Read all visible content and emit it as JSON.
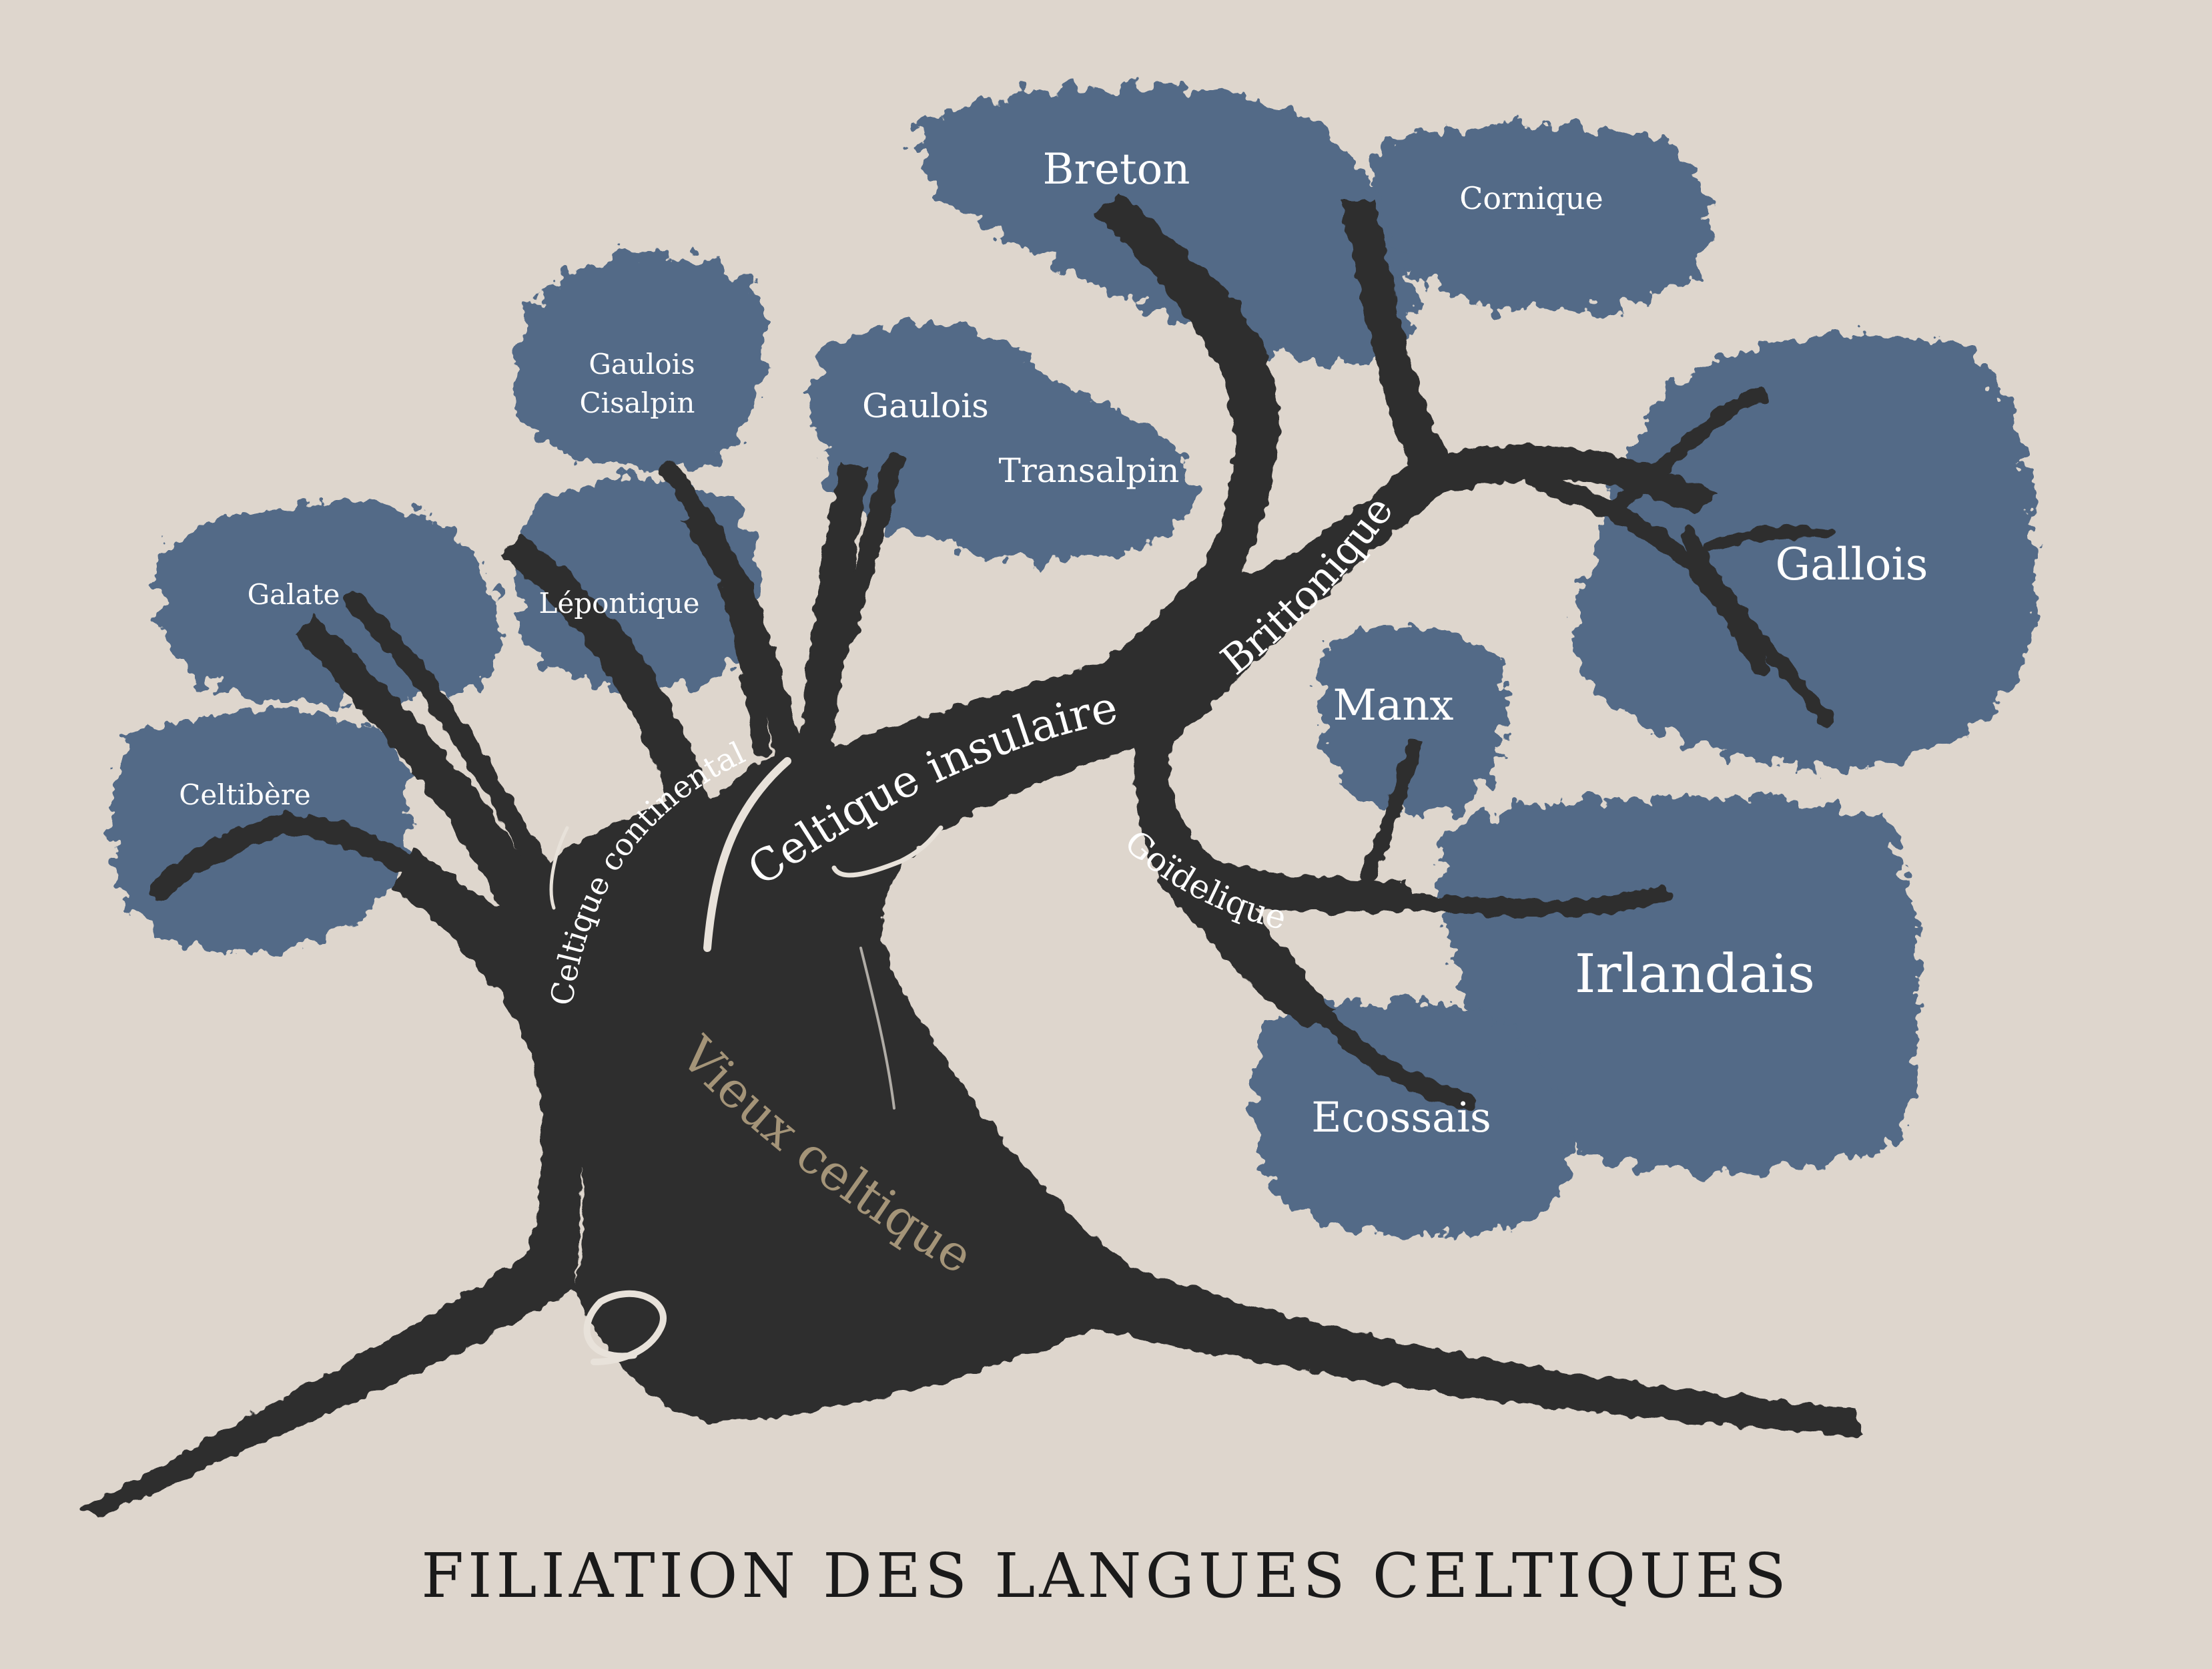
{
  "title": "FILIATION DES LANGUES CELTIQUES",
  "colors": {
    "background": "#ded6cd",
    "foliage": "#526a87",
    "trunk": "#2e2e2f",
    "leaf_text": "#ffffff",
    "root_text": "#a49478",
    "title_text": "#1a1a1a",
    "highlight": "#e8e2da"
  },
  "tree": {
    "root": "Vieux celtique",
    "branches": {
      "continental": "Celtique continental",
      "insular": "Celtique insulaire",
      "brittonic": "Brittonique",
      "goidelic": "Goïdelique"
    },
    "languages": {
      "celtibere": "Celtibère",
      "galate": "Galate",
      "gaulois_cisalpin_1": "Gaulois",
      "gaulois_cisalpin_2": "Cisalpin",
      "lepontique": "Lépontique",
      "gaulois_transalpin_1": "Gaulois",
      "gaulois_transalpin_2": "Transalpin",
      "breton": "Breton",
      "cornique": "Cornique",
      "gallois": "Gallois",
      "manx": "Manx",
      "irlandais": "Irlandais",
      "ecossais": "Ecossais"
    }
  }
}
